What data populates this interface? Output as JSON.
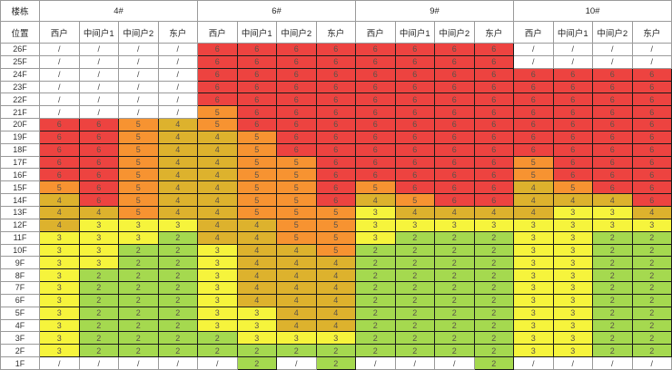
{
  "chart_data": {
    "type": "heatmap",
    "corner": {
      "top": "楼栋",
      "bottom": "位置"
    },
    "buildings": [
      "4#",
      "6#",
      "9#",
      "10#"
    ],
    "unit_headers": [
      "西户",
      "中间户1",
      "中间户2",
      "东户"
    ],
    "floors": [
      "26F",
      "25F",
      "24F",
      "23F",
      "22F",
      "21F",
      "20F",
      "19F",
      "18F",
      "17F",
      "16F",
      "15F",
      "14F",
      "13F",
      "12F",
      "11F",
      "10F",
      "9F",
      "8F",
      "7F",
      "6F",
      "5F",
      "4F",
      "3F",
      "2F",
      "1F"
    ],
    "values": [
      [
        "/",
        "/",
        "/",
        "/",
        "6",
        "6",
        "6",
        "6",
        "6",
        "6",
        "6",
        "6",
        "/",
        "/",
        "/",
        "/"
      ],
      [
        "/",
        "/",
        "/",
        "/",
        "6",
        "6",
        "6",
        "6",
        "6",
        "6",
        "6",
        "6",
        "/",
        "/",
        "/",
        "/"
      ],
      [
        "/",
        "/",
        "/",
        "/",
        "6",
        "6",
        "6",
        "6",
        "6",
        "6",
        "6",
        "6",
        "6",
        "6",
        "6",
        "6"
      ],
      [
        "/",
        "/",
        "/",
        "/",
        "6",
        "6",
        "6",
        "6",
        "6",
        "6",
        "6",
        "6",
        "6",
        "6",
        "6",
        "6"
      ],
      [
        "/",
        "/",
        "/",
        "/",
        "6",
        "6",
        "6",
        "6",
        "6",
        "6",
        "6",
        "6",
        "6",
        "6",
        "6",
        "6"
      ],
      [
        "/",
        "/",
        "/",
        "/",
        "5",
        "6",
        "6",
        "6",
        "6",
        "6",
        "6",
        "6",
        "6",
        "6",
        "6",
        "6"
      ],
      [
        "6",
        "6",
        "5",
        "4",
        "5",
        "6",
        "6",
        "6",
        "6",
        "6",
        "6",
        "6",
        "6",
        "6",
        "6",
        "6"
      ],
      [
        "6",
        "6",
        "5",
        "4",
        "4",
        "5",
        "6",
        "6",
        "6",
        "6",
        "6",
        "6",
        "6",
        "6",
        "6",
        "6"
      ],
      [
        "6",
        "6",
        "5",
        "4",
        "4",
        "5",
        "6",
        "6",
        "6",
        "6",
        "6",
        "6",
        "6",
        "6",
        "6",
        "6"
      ],
      [
        "6",
        "6",
        "5",
        "4",
        "4",
        "5",
        "5",
        "6",
        "6",
        "6",
        "6",
        "6",
        "5",
        "6",
        "6",
        "6"
      ],
      [
        "6",
        "6",
        "5",
        "4",
        "4",
        "5",
        "5",
        "6",
        "6",
        "6",
        "6",
        "6",
        "5",
        "6",
        "6",
        "6"
      ],
      [
        "5",
        "6",
        "5",
        "4",
        "4",
        "5",
        "5",
        "6",
        "5",
        "6",
        "6",
        "6",
        "4",
        "5",
        "6",
        "6"
      ],
      [
        "4",
        "6",
        "5",
        "4",
        "4",
        "5",
        "5",
        "6",
        "4",
        "5",
        "6",
        "6",
        "4",
        "4",
        "4",
        "6"
      ],
      [
        "4",
        "4",
        "5",
        "4",
        "4",
        "5",
        "5",
        "5",
        "3",
        "4",
        "4",
        "4",
        "4",
        "3",
        "3",
        "4"
      ],
      [
        "4",
        "3",
        "3",
        "3",
        "4",
        "4",
        "5",
        "5",
        "3",
        "3",
        "3",
        "3",
        "3",
        "3",
        "3",
        "3"
      ],
      [
        "3",
        "3",
        "3",
        "2",
        "4",
        "4",
        "5",
        "5",
        "3",
        "2",
        "2",
        "2",
        "3",
        "3",
        "2",
        "2"
      ],
      [
        "3",
        "3",
        "2",
        "2",
        "3",
        "4",
        "4",
        "5",
        "2",
        "2",
        "2",
        "2",
        "3",
        "3",
        "2",
        "2"
      ],
      [
        "3",
        "3",
        "2",
        "2",
        "3",
        "4",
        "4",
        "4",
        "2",
        "2",
        "2",
        "2",
        "3",
        "3",
        "2",
        "2"
      ],
      [
        "3",
        "2",
        "2",
        "2",
        "3",
        "4",
        "4",
        "4",
        "2",
        "2",
        "2",
        "2",
        "3",
        "3",
        "2",
        "2"
      ],
      [
        "3",
        "2",
        "2",
        "2",
        "3",
        "4",
        "4",
        "4",
        "2",
        "2",
        "2",
        "2",
        "3",
        "3",
        "2",
        "2"
      ],
      [
        "3",
        "2",
        "2",
        "2",
        "3",
        "4",
        "4",
        "4",
        "2",
        "2",
        "2",
        "2",
        "3",
        "3",
        "2",
        "2"
      ],
      [
        "3",
        "2",
        "2",
        "2",
        "3",
        "3",
        "4",
        "4",
        "2",
        "2",
        "2",
        "2",
        "3",
        "3",
        "2",
        "2"
      ],
      [
        "3",
        "2",
        "2",
        "2",
        "3",
        "3",
        "4",
        "4",
        "2",
        "2",
        "2",
        "2",
        "3",
        "3",
        "2",
        "2"
      ],
      [
        "3",
        "2",
        "2",
        "2",
        "2",
        "3",
        "3",
        "3",
        "2",
        "2",
        "2",
        "2",
        "3",
        "3",
        "2",
        "2"
      ],
      [
        "3",
        "2",
        "2",
        "2",
        "2",
        "2",
        "2",
        "2",
        "2",
        "2",
        "2",
        "2",
        "3",
        "3",
        "2",
        "2"
      ],
      [
        "/",
        "/",
        "/",
        "/",
        "/",
        "2",
        "/",
        "2",
        "/",
        "/",
        "/",
        "2",
        "/",
        "/",
        "/",
        "/"
      ]
    ],
    "value_colors": {
      "6": "#ed4340",
      "5": "#f79331",
      "4": "#ddb22d",
      "3": "#f6f43c",
      "2": "#a5d94f",
      "/": "#ffffff"
    }
  }
}
